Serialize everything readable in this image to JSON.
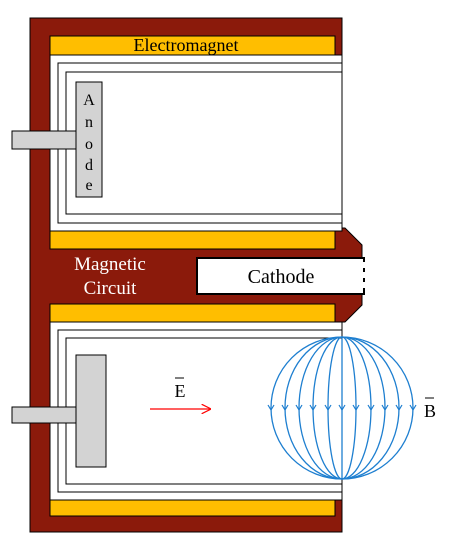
{
  "labels": {
    "electromagnet": "Electromagnet",
    "anode": [
      "A",
      "n",
      "o",
      "d",
      "e"
    ],
    "magnetic_circuit_line1": "Magnetic",
    "magnetic_circuit_line2": "Circuit",
    "cathode": "Cathode",
    "e_field": "E",
    "b_field": "B"
  },
  "colors": {
    "magnetic_circuit": "#8B1A0B",
    "magnet_bars": "#FFBE00",
    "metal": "#D3D3D3",
    "e_arrow": "#FF0000",
    "b_field_lines": "#1E7FD0",
    "label_light": "#FFFFFF",
    "label_dark": "#000000"
  }
}
